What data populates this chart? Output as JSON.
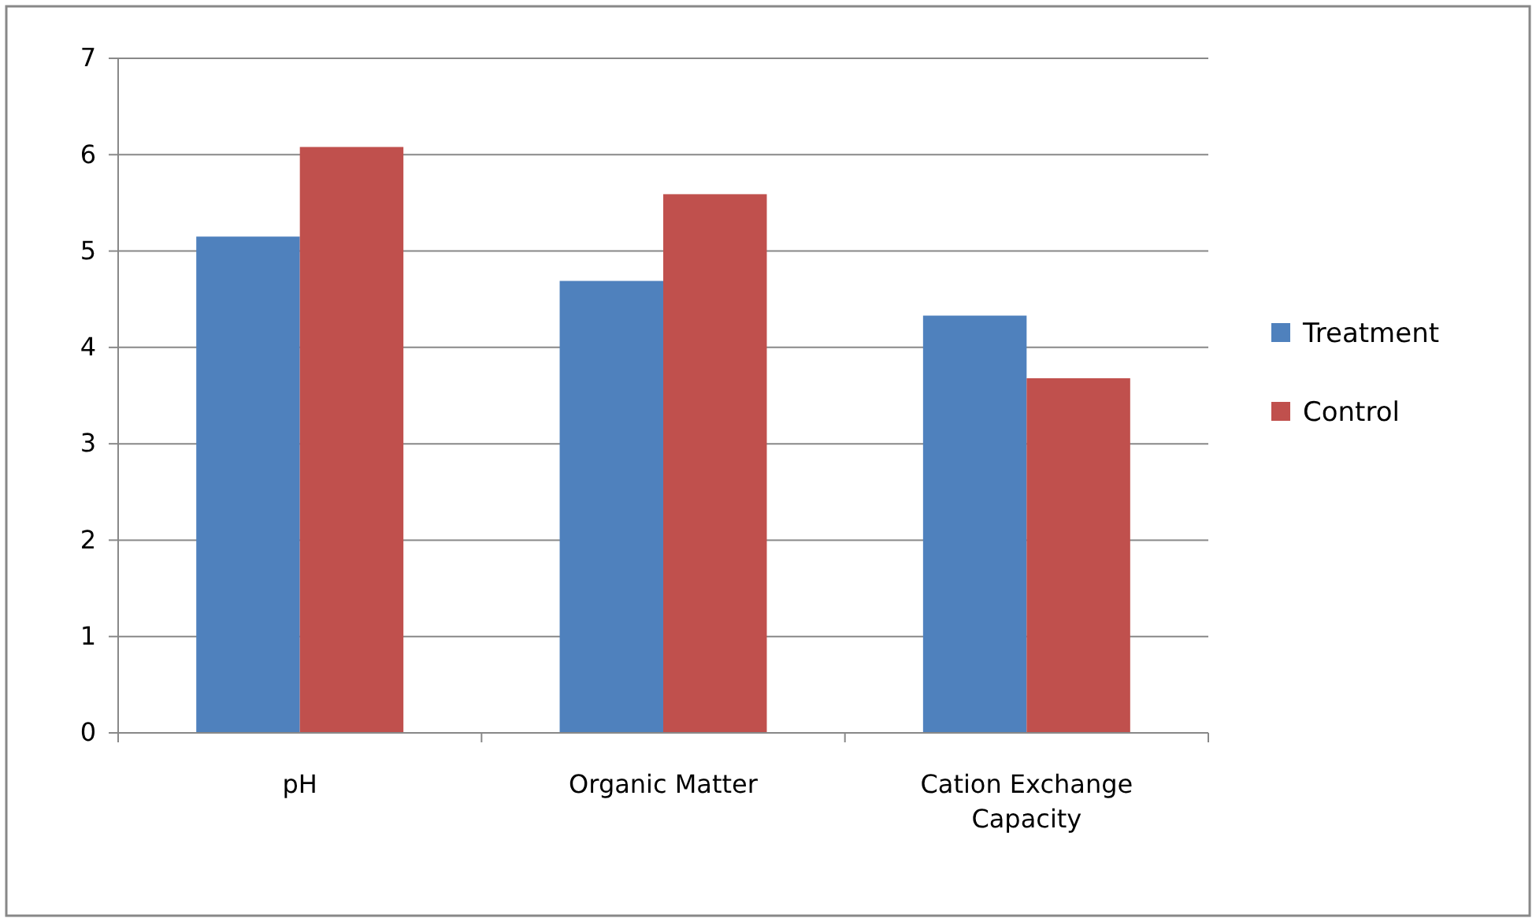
{
  "chart_data": {
    "type": "bar",
    "categories": [
      "pH",
      "Organic Matter",
      "Cation Exchange Capacity"
    ],
    "series": [
      {
        "name": "Treatment",
        "color": "#4f81bd",
        "values": [
          5.15,
          4.69,
          4.33
        ]
      },
      {
        "name": "Control",
        "color": "#c0504d",
        "values": [
          6.08,
          5.59,
          3.68
        ]
      }
    ],
    "ylim": [
      0,
      7
    ],
    "yticks": [
      0,
      1,
      2,
      3,
      4,
      5,
      6,
      7
    ],
    "grid": "y",
    "legend": "right"
  }
}
